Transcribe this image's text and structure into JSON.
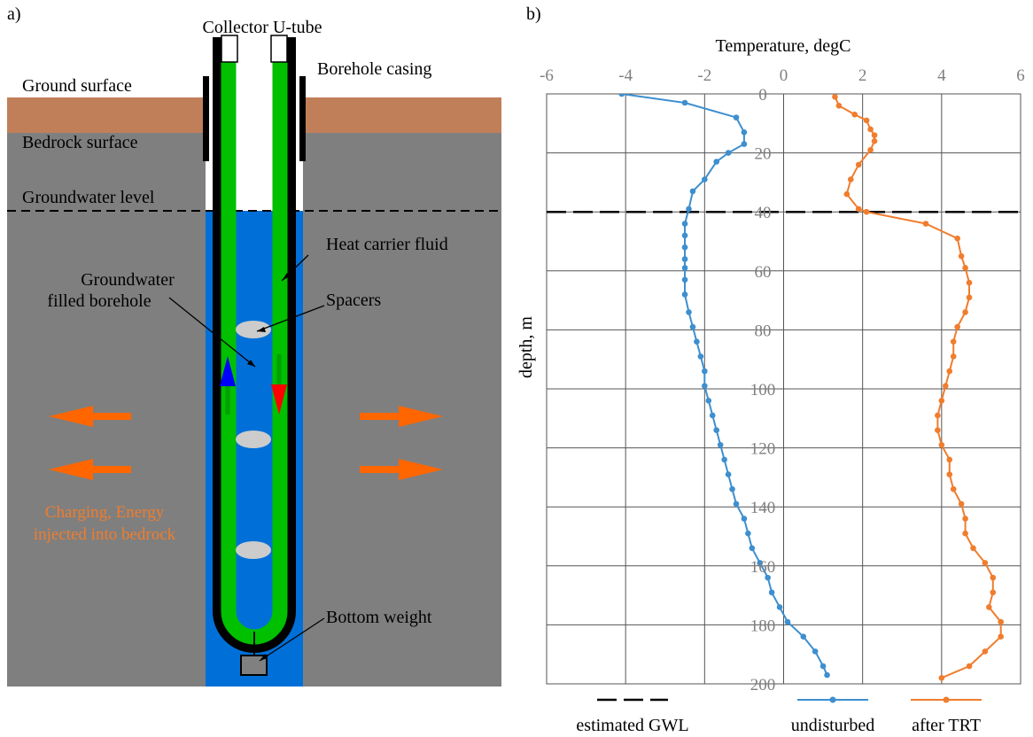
{
  "panel_a": {
    "panel_label": "a)",
    "labels": {
      "collector": "Collector U-tube",
      "casing": "Borehole casing",
      "ground_surface": "Ground surface",
      "bedrock_surface": "Bedrock surface",
      "groundwater_level": "Groundwater level",
      "heat_carrier": "Heat carrier fluid",
      "filled_line1": "Groundwater",
      "filled_line2": "filled borehole",
      "spacers": "Spacers",
      "charging_line1": "Charging, Energy",
      "charging_line2": "injected into bedrock",
      "bottom_weight": "Bottom weight"
    },
    "colors": {
      "soil": "#c17f59",
      "bedrock": "#7f7f7f",
      "water": "#0070d8",
      "tube": "#00c000",
      "spacer": "#cccccc",
      "arrow_heat": "#ff6600",
      "arrow_up": "#0000ff",
      "arrow_down": "#ff0000",
      "charging_text": "#f07d2d"
    }
  },
  "panel_b": {
    "panel_label": "b)",
    "chart_data": {
      "type": "line",
      "xlabel": "Temperature, degC",
      "ylabel": "depth, m",
      "xlim": [
        -6,
        6
      ],
      "ylim": [
        200,
        0
      ],
      "x_ticks": [
        "-6",
        "-4",
        "-2",
        "0",
        "2",
        "4",
        "6"
      ],
      "y_ticks": [
        "0",
        "20",
        "40",
        "60",
        "80",
        "100",
        "120",
        "140",
        "160",
        "180",
        "200"
      ],
      "grid": true,
      "legend_position": "bottom",
      "gwl_depth": 40,
      "series": [
        {
          "name": "estimated GWL",
          "color": "#000000",
          "style": "dashed",
          "points": [
            [
              -6,
              40
            ],
            [
              6,
              40
            ]
          ]
        },
        {
          "name": "undisturbed",
          "color": "#3d8fcf",
          "points": [
            [
              -4.1,
              0
            ],
            [
              -2.5,
              3
            ],
            [
              -1.2,
              8
            ],
            [
              -1.0,
              13
            ],
            [
              -1.0,
              17
            ],
            [
              -1.4,
              20
            ],
            [
              -1.7,
              23
            ],
            [
              -2.0,
              29
            ],
            [
              -2.3,
              33
            ],
            [
              -2.4,
              39
            ],
            [
              -2.5,
              44
            ],
            [
              -2.5,
              48
            ],
            [
              -2.5,
              52
            ],
            [
              -2.5,
              56
            ],
            [
              -2.5,
              59
            ],
            [
              -2.5,
              63
            ],
            [
              -2.5,
              68
            ],
            [
              -2.4,
              74
            ],
            [
              -2.3,
              79
            ],
            [
              -2.2,
              84
            ],
            [
              -2.1,
              89
            ],
            [
              -2.0,
              94
            ],
            [
              -2.0,
              99
            ],
            [
              -1.9,
              104
            ],
            [
              -1.8,
              109
            ],
            [
              -1.7,
              114
            ],
            [
              -1.6,
              119
            ],
            [
              -1.5,
              124
            ],
            [
              -1.4,
              129
            ],
            [
              -1.3,
              134
            ],
            [
              -1.2,
              139
            ],
            [
              -1.0,
              144
            ],
            [
              -0.9,
              149
            ],
            [
              -0.8,
              154
            ],
            [
              -0.6,
              159
            ],
            [
              -0.4,
              164
            ],
            [
              -0.3,
              169
            ],
            [
              -0.1,
              174
            ],
            [
              0.1,
              179
            ],
            [
              0.5,
              184
            ],
            [
              0.8,
              189
            ],
            [
              1.0,
              194
            ],
            [
              1.1,
              197
            ]
          ]
        },
        {
          "name": "after TRT",
          "color": "#f07d2d",
          "points": [
            [
              1.3,
              1
            ],
            [
              1.4,
              4
            ],
            [
              1.8,
              7
            ],
            [
              2.1,
              9
            ],
            [
              2.2,
              12
            ],
            [
              2.3,
              14
            ],
            [
              2.3,
              16
            ],
            [
              2.2,
              19
            ],
            [
              1.9,
              24
            ],
            [
              1.7,
              29
            ],
            [
              1.6,
              34
            ],
            [
              1.9,
              39
            ],
            [
              2.1,
              40
            ],
            [
              3.6,
              44
            ],
            [
              4.4,
              49
            ],
            [
              4.5,
              55
            ],
            [
              4.6,
              59
            ],
            [
              4.7,
              64
            ],
            [
              4.7,
              69
            ],
            [
              4.6,
              74
            ],
            [
              4.4,
              79
            ],
            [
              4.3,
              84
            ],
            [
              4.3,
              89
            ],
            [
              4.2,
              94
            ],
            [
              4.1,
              99
            ],
            [
              4.0,
              104
            ],
            [
              3.9,
              109
            ],
            [
              3.9,
              114
            ],
            [
              4.0,
              119
            ],
            [
              4.2,
              124
            ],
            [
              4.2,
              129
            ],
            [
              4.3,
              134
            ],
            [
              4.5,
              139
            ],
            [
              4.6,
              144
            ],
            [
              4.6,
              149
            ],
            [
              4.8,
              154
            ],
            [
              5.1,
              159
            ],
            [
              5.3,
              164
            ],
            [
              5.3,
              169
            ],
            [
              5.2,
              174
            ],
            [
              5.5,
              179
            ],
            [
              5.5,
              184
            ],
            [
              5.1,
              189
            ],
            [
              4.7,
              194
            ],
            [
              4.0,
              198
            ]
          ]
        }
      ]
    }
  }
}
